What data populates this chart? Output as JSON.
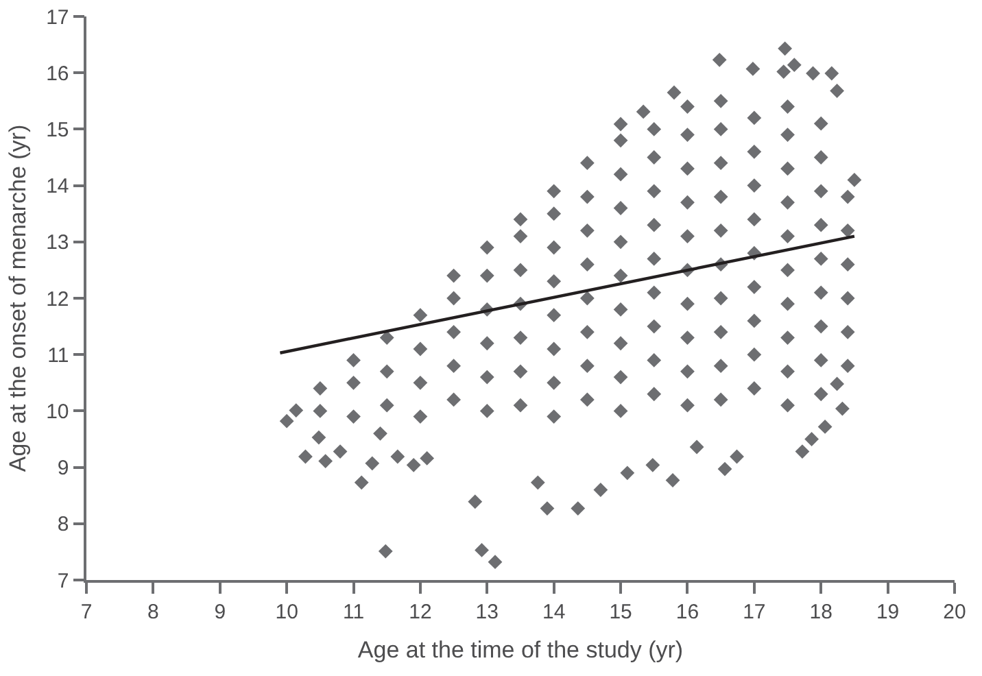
{
  "chart_data": {
    "type": "scatter",
    "xlabel": "Age at the time of the study (yr)",
    "ylabel": "Age at the onset of menarche (yr)",
    "xlim": [
      7,
      20
    ],
    "ylim": [
      7,
      17
    ],
    "xticks": [
      7,
      8,
      9,
      10,
      11,
      12,
      13,
      14,
      15,
      16,
      17,
      18,
      19,
      20
    ],
    "yticks": [
      7,
      8,
      9,
      10,
      11,
      12,
      13,
      14,
      15,
      16,
      17
    ],
    "grid": false,
    "marker": "diamond",
    "line_style": "solid",
    "series": [
      {
        "color": "#6d6e71",
        "x": [
          10.0,
          10.14,
          10.28,
          10.48,
          10.58,
          10.8,
          11.12,
          11.28,
          11.4,
          11.48,
          11.66,
          11.9,
          12.1,
          12.82,
          12.92,
          13.12,
          13.76,
          13.9,
          14.36,
          14.7,
          15.1,
          15.48,
          15.78,
          16.14,
          16.56,
          16.74,
          17.72,
          17.86,
          18.06,
          18.32,
          18.24,
          15.0,
          15.34,
          15.8,
          16.48,
          16.98,
          17.44,
          17.46,
          17.6,
          17.88,
          18.16,
          18.24,
          18.5,
          10.5,
          10.5,
          11.0,
          11.0,
          11.0,
          11.5,
          11.5,
          11.5,
          12.0,
          12.0,
          12.0,
          12.0,
          12.5,
          12.5,
          12.5,
          12.5,
          12.5,
          13.0,
          13.0,
          13.0,
          13.0,
          13.0,
          13.0,
          13.5,
          13.5,
          13.5,
          13.5,
          13.5,
          13.5,
          13.5,
          14.0,
          14.0,
          14.0,
          14.0,
          14.0,
          14.0,
          14.0,
          14.0,
          14.5,
          14.5,
          14.5,
          14.5,
          14.5,
          14.5,
          14.5,
          14.5,
          15.0,
          15.0,
          15.0,
          15.0,
          15.0,
          15.0,
          15.0,
          15.0,
          15.0,
          15.5,
          15.5,
          15.5,
          15.5,
          15.5,
          15.5,
          15.5,
          15.5,
          15.5,
          16.0,
          16.0,
          16.0,
          16.0,
          16.0,
          16.0,
          16.0,
          16.0,
          16.0,
          16.0,
          16.5,
          16.5,
          16.5,
          16.5,
          16.5,
          16.5,
          16.5,
          16.5,
          16.5,
          16.5,
          17.0,
          17.0,
          17.0,
          17.0,
          17.0,
          17.0,
          17.0,
          17.0,
          17.0,
          17.5,
          17.5,
          17.5,
          17.5,
          17.5,
          17.5,
          17.5,
          17.5,
          17.5,
          17.5,
          18.0,
          18.0,
          18.0,
          18.0,
          18.0,
          18.0,
          18.0,
          18.0,
          18.0,
          18.4,
          18.4,
          18.4,
          18.4,
          18.4,
          18.4
        ],
        "values": [
          9.82,
          10.01,
          9.19,
          9.53,
          9.11,
          9.28,
          8.73,
          9.07,
          9.6,
          7.51,
          9.19,
          9.04,
          9.16,
          8.39,
          7.53,
          7.32,
          8.73,
          8.27,
          8.27,
          8.6,
          8.9,
          9.04,
          8.77,
          9.36,
          8.97,
          9.19,
          9.28,
          9.5,
          9.72,
          10.04,
          10.48,
          15.09,
          15.31,
          15.65,
          16.23,
          16.07,
          16.02,
          16.43,
          16.14,
          15.99,
          15.99,
          15.68,
          14.1,
          10.0,
          10.4,
          9.9,
          10.5,
          10.9,
          10.1,
          10.7,
          11.3,
          9.9,
          10.5,
          11.1,
          11.7,
          10.2,
          10.8,
          11.4,
          12.0,
          12.4,
          10.0,
          10.6,
          11.2,
          11.8,
          12.4,
          12.9,
          10.1,
          10.7,
          11.3,
          11.9,
          12.5,
          13.1,
          13.4,
          9.9,
          10.5,
          11.1,
          11.7,
          12.3,
          12.9,
          13.5,
          13.9,
          10.2,
          10.8,
          11.4,
          12.0,
          12.6,
          13.2,
          13.8,
          14.4,
          10.0,
          10.6,
          11.2,
          11.8,
          12.4,
          13.0,
          13.6,
          14.2,
          14.8,
          10.3,
          10.9,
          11.5,
          12.1,
          12.7,
          13.3,
          13.9,
          14.5,
          15.0,
          10.1,
          10.7,
          11.3,
          11.9,
          12.5,
          13.1,
          13.7,
          14.3,
          14.9,
          15.4,
          10.2,
          10.8,
          11.4,
          12.0,
          12.6,
          13.2,
          13.8,
          14.4,
          15.0,
          15.5,
          10.4,
          11.0,
          11.6,
          12.2,
          12.8,
          13.4,
          14.0,
          14.6,
          15.2,
          10.1,
          10.7,
          11.3,
          11.9,
          12.5,
          13.1,
          13.7,
          14.3,
          14.9,
          15.4,
          10.3,
          10.9,
          11.5,
          12.1,
          12.7,
          13.3,
          13.9,
          14.5,
          15.1,
          10.8,
          11.4,
          12.0,
          12.6,
          13.2,
          13.8
        ]
      },
      {
        "type": "line",
        "color": "#231f20",
        "marker": "none",
        "x": [
          9.9,
          18.5
        ],
        "values": [
          11.03,
          13.1
        ]
      }
    ]
  }
}
